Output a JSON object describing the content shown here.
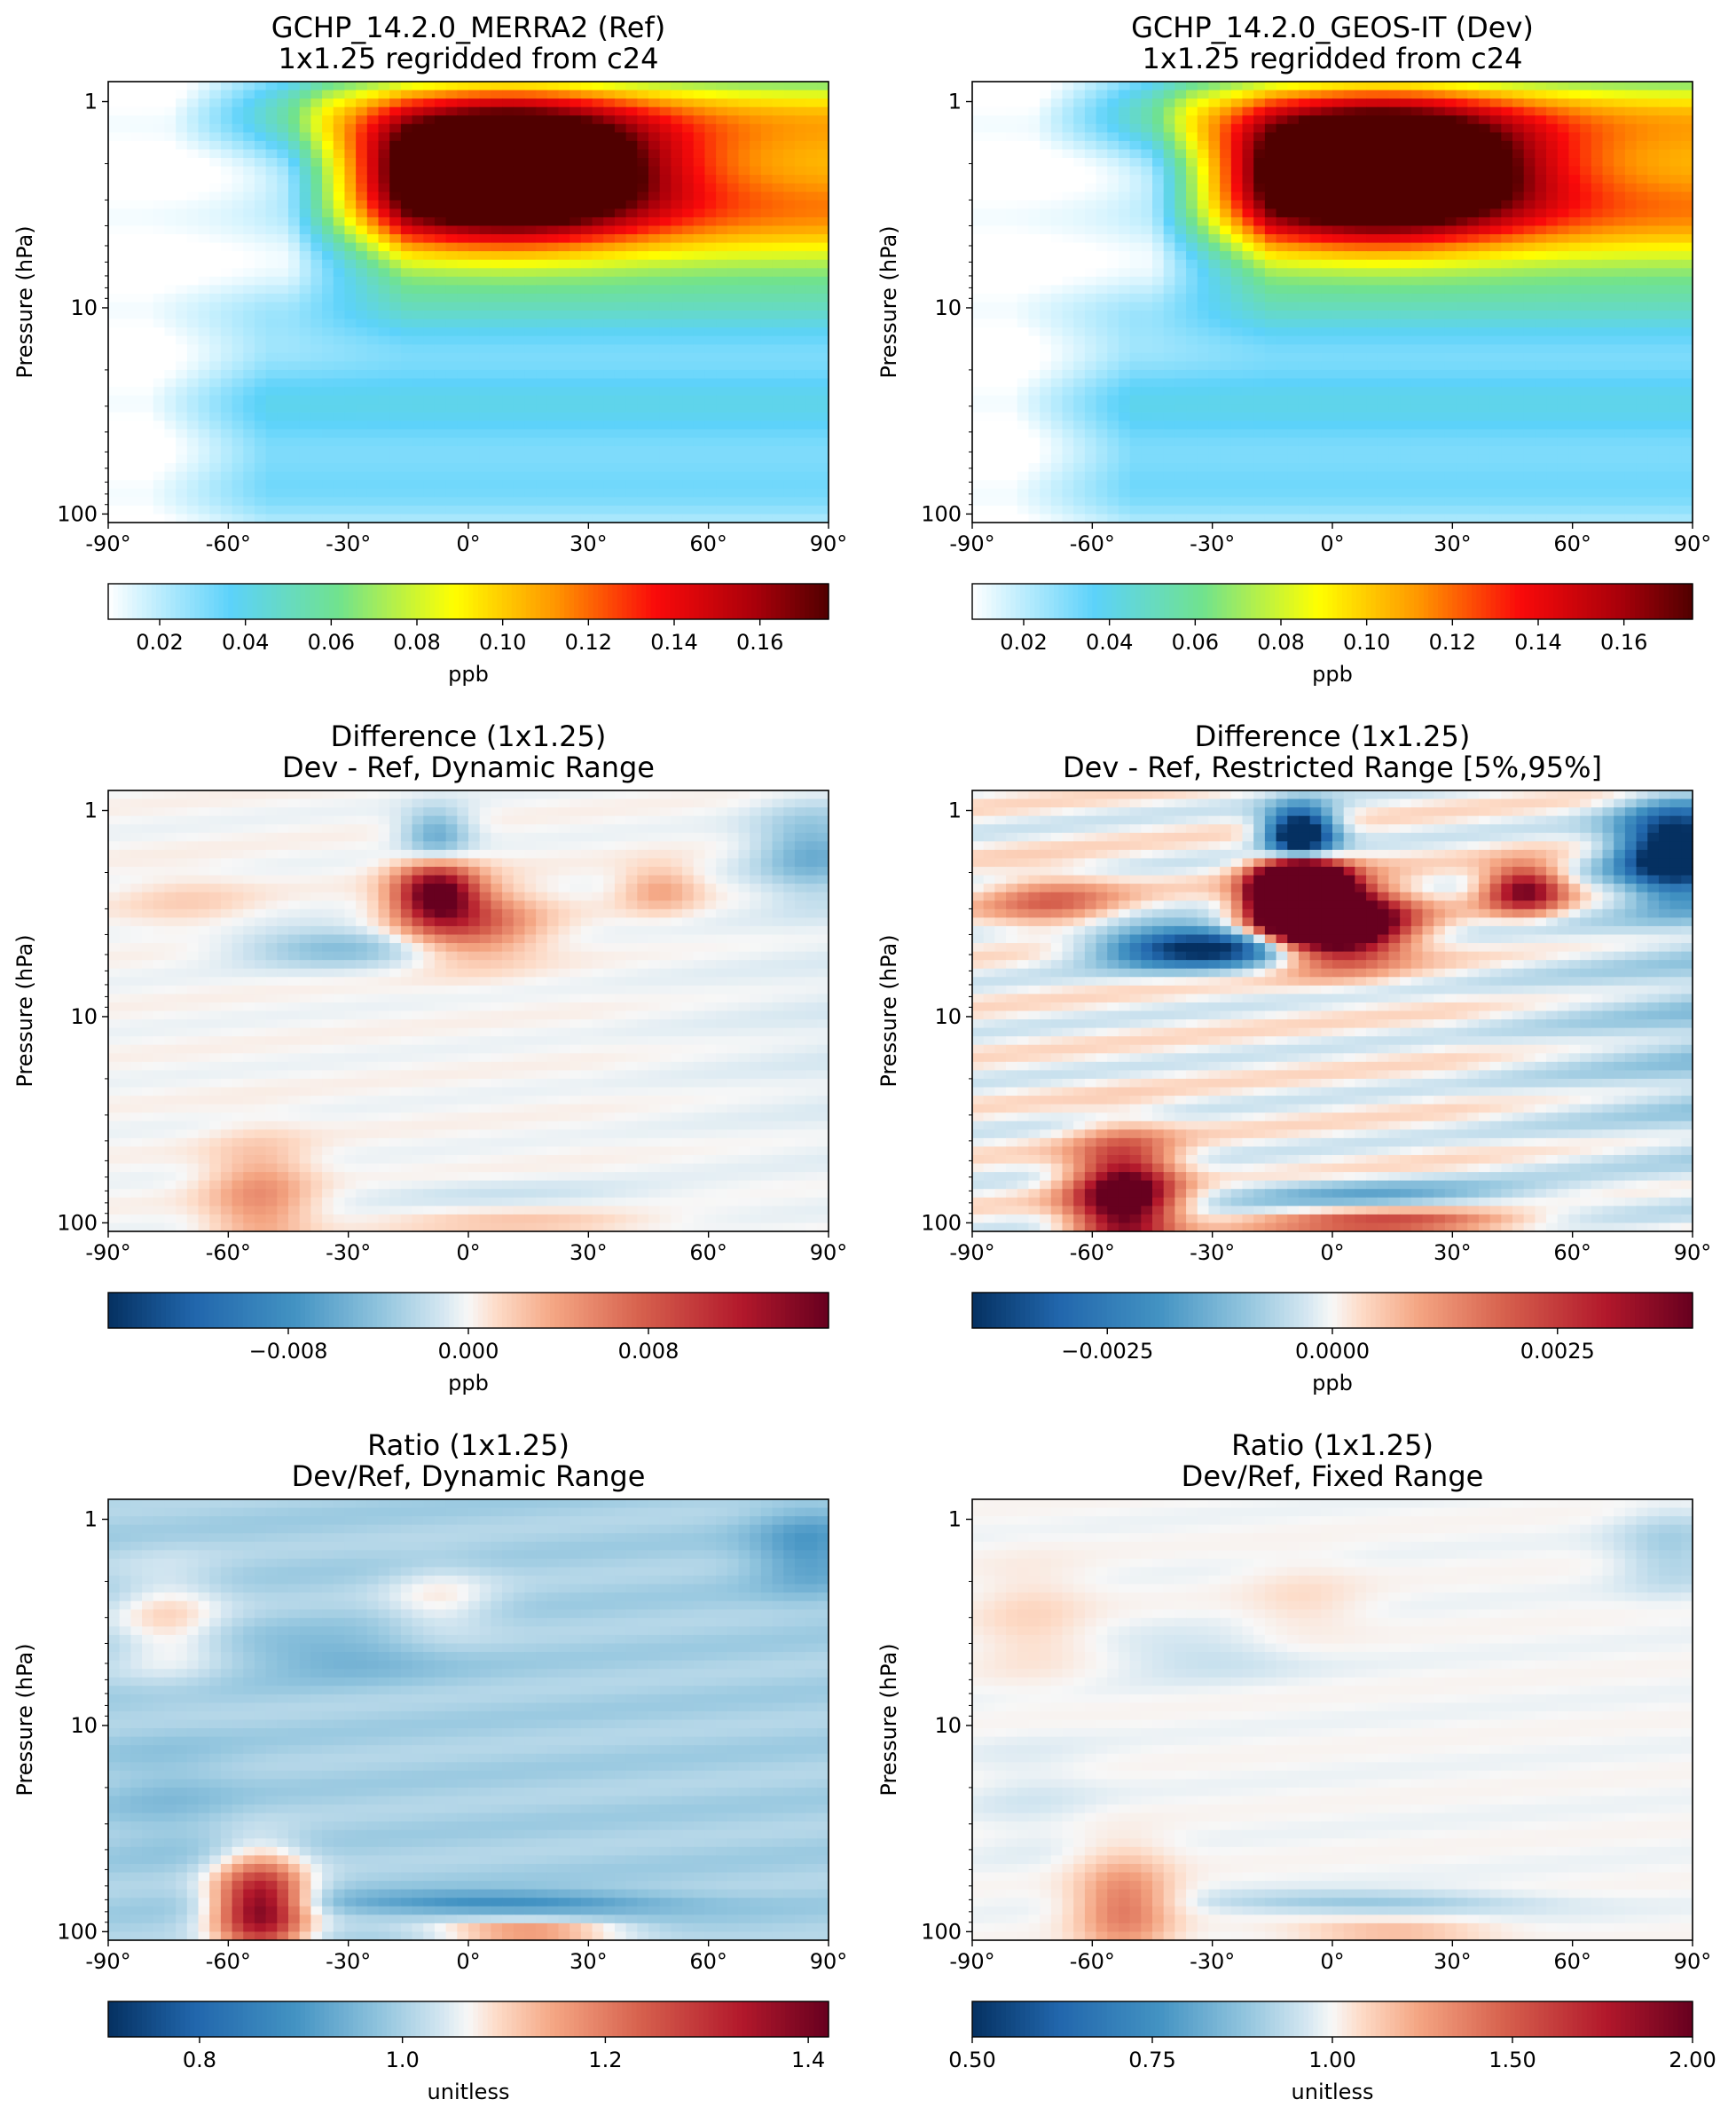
{
  "chart_data": [
    {
      "type": "heatmap",
      "title": "GCHP_14.2.0_MERRA2 (Ref)",
      "subtitle": "1x1.25 regridded from c24",
      "xlabel": "",
      "ylabel": "Pressure (hPa)",
      "xticks": [
        "-90°",
        "-60°",
        "-30°",
        "0°",
        "30°",
        "60°",
        "90°"
      ],
      "xlim": [
        -90,
        90
      ],
      "yticks": [
        "1",
        "10",
        "100"
      ],
      "ylim_hPa": [
        110,
        0.8
      ],
      "y_scale": "log",
      "colormap": "WhGrYlRd",
      "colorbar": {
        "label": "ppb",
        "ticks": [
          "0.02",
          "0.04",
          "0.06",
          "0.08",
          "0.10",
          "0.12",
          "0.14",
          "0.16"
        ],
        "range": [
          0.008,
          0.176
        ]
      },
      "field": {
        "kind": "concentration",
        "peak_value": 0.175,
        "peak_lat": 10,
        "peak_pressure_hPa": 2
      }
    },
    {
      "type": "heatmap",
      "title": "GCHP_14.2.0_GEOS-IT (Dev)",
      "subtitle": "1x1.25 regridded from c24",
      "xlabel": "",
      "ylabel": "Pressure (hPa)",
      "xticks": [
        "-90°",
        "-60°",
        "-30°",
        "0°",
        "30°",
        "60°",
        "90°"
      ],
      "xlim": [
        -90,
        90
      ],
      "yticks": [
        "1",
        "10",
        "100"
      ],
      "ylim_hPa": [
        110,
        0.8
      ],
      "y_scale": "log",
      "colormap": "WhGrYlRd",
      "colorbar": {
        "label": "ppb",
        "ticks": [
          "0.02",
          "0.04",
          "0.06",
          "0.08",
          "0.10",
          "0.12",
          "0.14",
          "0.16"
        ],
        "range": [
          0.008,
          0.176
        ]
      },
      "field": {
        "kind": "concentration",
        "peak_value": 0.176,
        "peak_lat": 12,
        "peak_pressure_hPa": 2
      }
    },
    {
      "type": "heatmap",
      "title": "Difference (1x1.25)",
      "subtitle": "Dev - Ref, Dynamic Range",
      "xlabel": "",
      "ylabel": "Pressure (hPa)",
      "xticks": [
        "-90°",
        "-60°",
        "-30°",
        "0°",
        "30°",
        "60°",
        "90°"
      ],
      "xlim": [
        -90,
        90
      ],
      "yticks": [
        "1",
        "10",
        "100"
      ],
      "ylim_hPa": [
        110,
        0.8
      ],
      "y_scale": "log",
      "colormap": "RdBu_r",
      "colorbar": {
        "label": "ppb",
        "ticks": [
          "−0.008",
          "0.000",
          "0.008"
        ],
        "range": [
          -0.016,
          0.016
        ]
      },
      "field": {
        "kind": "difference",
        "vmax": 0.016
      }
    },
    {
      "type": "heatmap",
      "title": "Difference (1x1.25)",
      "subtitle": "Dev - Ref, Restricted Range [5%,95%]",
      "xlabel": "",
      "ylabel": "Pressure (hPa)",
      "xticks": [
        "-90°",
        "-60°",
        "-30°",
        "0°",
        "30°",
        "60°",
        "90°"
      ],
      "xlim": [
        -90,
        90
      ],
      "yticks": [
        "1",
        "10",
        "100"
      ],
      "ylim_hPa": [
        110,
        0.8
      ],
      "y_scale": "log",
      "colormap": "RdBu_r",
      "colorbar": {
        "label": "ppb",
        "ticks": [
          "−0.0025",
          "0.0000",
          "0.0025"
        ],
        "range": [
          -0.004,
          0.004
        ]
      },
      "field": {
        "kind": "difference",
        "vmax": 0.004
      }
    },
    {
      "type": "heatmap",
      "title": "Ratio (1x1.25)",
      "subtitle": "Dev/Ref, Dynamic Range",
      "xlabel": "",
      "ylabel": "Pressure (hPa)",
      "xticks": [
        "-90°",
        "-60°",
        "-30°",
        "0°",
        "30°",
        "60°",
        "90°"
      ],
      "xlim": [
        -90,
        90
      ],
      "yticks": [
        "1",
        "10",
        "100"
      ],
      "ylim_hPa": [
        110,
        0.8
      ],
      "y_scale": "log",
      "colormap": "RdBu_r",
      "colorbar": {
        "label": "unitless",
        "ticks": [
          "0.8",
          "1.0",
          "1.2",
          "1.4"
        ],
        "range": [
          0.71,
          1.42
        ]
      },
      "field": {
        "kind": "ratio"
      }
    },
    {
      "type": "heatmap",
      "title": "Ratio (1x1.25)",
      "subtitle": "Dev/Ref, Fixed Range",
      "xlabel": "",
      "ylabel": "Pressure (hPa)",
      "xticks": [
        "-90°",
        "-60°",
        "-30°",
        "0°",
        "30°",
        "60°",
        "90°"
      ],
      "xlim": [
        -90,
        90
      ],
      "yticks": [
        "1",
        "10",
        "100"
      ],
      "ylim_hPa": [
        110,
        0.8
      ],
      "y_scale": "log",
      "colormap": "RdBu_r",
      "colorbar": {
        "label": "unitless",
        "ticks": [
          "0.50",
          "0.75",
          "1.00",
          "1.50",
          "2.00"
        ],
        "range": [
          0.5,
          2.0
        ]
      },
      "field": {
        "kind": "ratio"
      }
    }
  ]
}
